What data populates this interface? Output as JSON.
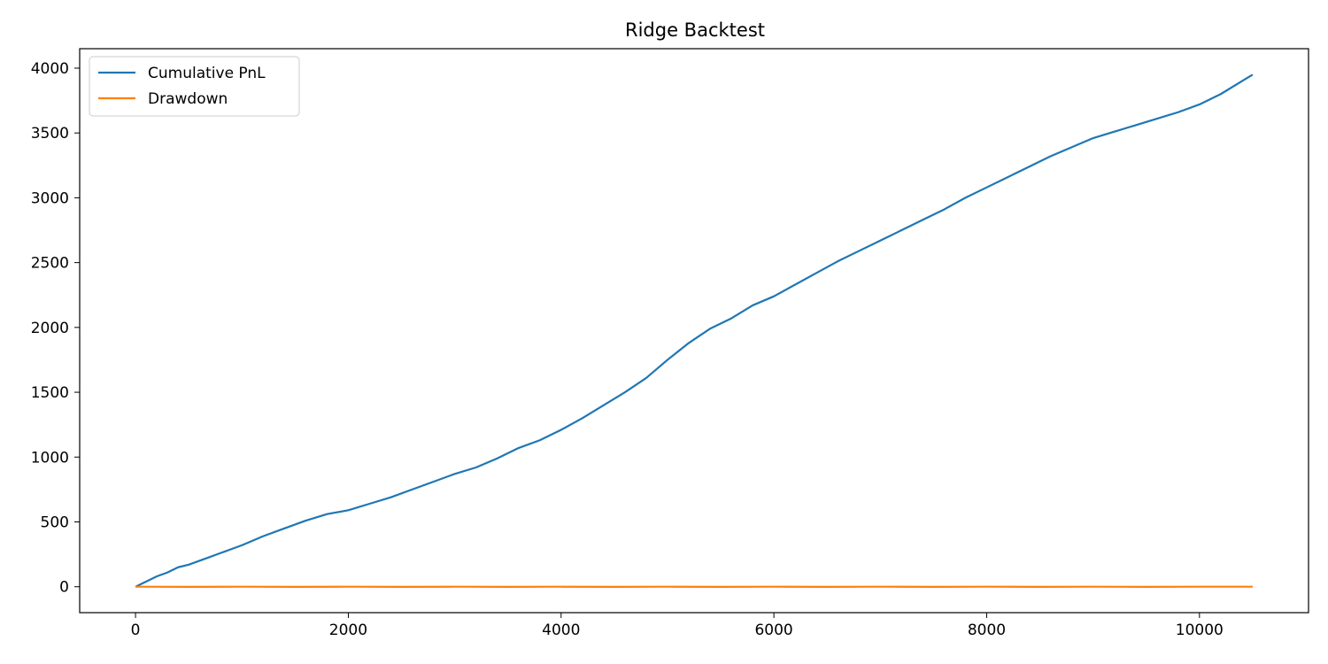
{
  "chart_data": {
    "type": "line",
    "title": "Ridge Backtest",
    "xlabel": "",
    "ylabel": "",
    "xlim": [
      -525,
      11025
    ],
    "ylim": [
      -200,
      4150
    ],
    "x_ticks": [
      0,
      2000,
      4000,
      6000,
      8000,
      10000
    ],
    "y_ticks": [
      0,
      500,
      1000,
      1500,
      2000,
      2500,
      3000,
      3500,
      4000
    ],
    "grid": false,
    "legend_position": "top-left",
    "series": [
      {
        "name": "Cumulative PnL",
        "color": "#1f77b4",
        "x": [
          0,
          100,
          200,
          300,
          400,
          500,
          600,
          700,
          800,
          900,
          1000,
          1200,
          1400,
          1600,
          1800,
          2000,
          2200,
          2400,
          2600,
          2800,
          3000,
          3200,
          3400,
          3600,
          3800,
          4000,
          4200,
          4400,
          4600,
          4800,
          5000,
          5200,
          5400,
          5600,
          5800,
          6000,
          6200,
          6400,
          6600,
          6800,
          7000,
          7200,
          7400,
          7600,
          7800,
          8000,
          8200,
          8400,
          8600,
          8800,
          9000,
          9200,
          9400,
          9600,
          9800,
          10000,
          10200,
          10400,
          10500
        ],
        "y": [
          0,
          40,
          80,
          110,
          150,
          170,
          200,
          230,
          260,
          290,
          320,
          390,
          450,
          510,
          560,
          590,
          640,
          690,
          750,
          810,
          870,
          920,
          990,
          1070,
          1130,
          1210,
          1300,
          1400,
          1500,
          1610,
          1750,
          1880,
          1990,
          2070,
          2170,
          2240,
          2330,
          2420,
          2510,
          2590,
          2670,
          2750,
          2830,
          2910,
          3000,
          3080,
          3160,
          3240,
          3320,
          3390,
          3460,
          3510,
          3560,
          3610,
          3660,
          3720,
          3800,
          3900,
          3950
        ]
      },
      {
        "name": "Drawdown",
        "color": "#ff7f0e",
        "x": [
          0,
          500,
          1000,
          1500,
          2000,
          2500,
          3000,
          3500,
          4000,
          4500,
          5000,
          5500,
          6000,
          6500,
          7000,
          7500,
          8000,
          8500,
          9000,
          9500,
          10000,
          10500
        ],
        "y": [
          0,
          -1,
          0,
          -1,
          0,
          -1,
          0,
          -1,
          0,
          -1,
          0,
          -1,
          0,
          -1,
          0,
          -1,
          0,
          -1,
          0,
          -1,
          0,
          0
        ]
      }
    ]
  }
}
